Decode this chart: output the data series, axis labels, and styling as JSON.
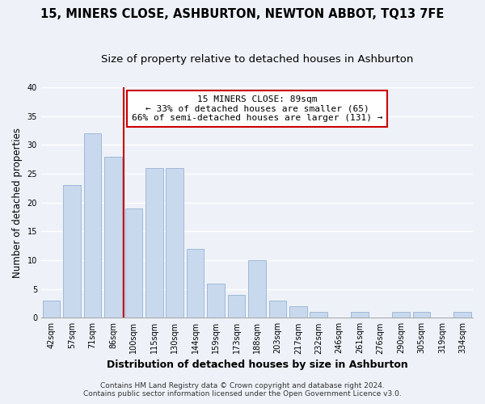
{
  "title": "15, MINERS CLOSE, ASHBURTON, NEWTON ABBOT, TQ13 7FE",
  "subtitle": "Size of property relative to detached houses in Ashburton",
  "xlabel": "Distribution of detached houses by size in Ashburton",
  "ylabel": "Number of detached properties",
  "bar_labels": [
    "42sqm",
    "57sqm",
    "71sqm",
    "86sqm",
    "100sqm",
    "115sqm",
    "130sqm",
    "144sqm",
    "159sqm",
    "173sqm",
    "188sqm",
    "203sqm",
    "217sqm",
    "232sqm",
    "246sqm",
    "261sqm",
    "276sqm",
    "290sqm",
    "305sqm",
    "319sqm",
    "334sqm"
  ],
  "bar_values": [
    3,
    23,
    32,
    28,
    19,
    26,
    26,
    12,
    6,
    4,
    10,
    3,
    2,
    1,
    0,
    1,
    0,
    1,
    1,
    0,
    1
  ],
  "bar_color": "#c8d9ee",
  "bar_edge_color": "#a0b8d8",
  "vline_x": 3.5,
  "vline_color": "#cc0000",
  "annotation_text": "15 MINERS CLOSE: 89sqm\n← 33% of detached houses are smaller (65)\n66% of semi-detached houses are larger (131) →",
  "annotation_box_color": "#ffffff",
  "annotation_box_edge": "#cc0000",
  "ylim": [
    0,
    40
  ],
  "yticks": [
    0,
    5,
    10,
    15,
    20,
    25,
    30,
    35,
    40
  ],
  "footnote1": "Contains HM Land Registry data © Crown copyright and database right 2024.",
  "footnote2": "Contains public sector information licensed under the Open Government Licence v3.0.",
  "background_color": "#eef2f8",
  "grid_color": "#ffffff",
  "title_fontsize": 10.5,
  "subtitle_fontsize": 9.5,
  "xlabel_fontsize": 9,
  "ylabel_fontsize": 8.5,
  "tick_fontsize": 7,
  "annotation_fontsize": 8,
  "footnote_fontsize": 6.5
}
